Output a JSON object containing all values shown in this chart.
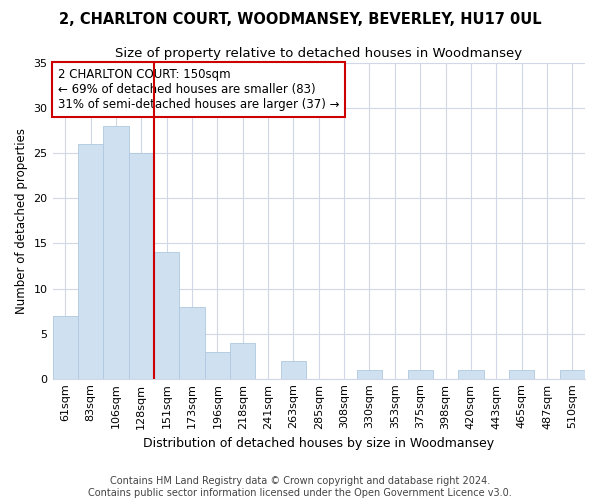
{
  "title": "2, CHARLTON COURT, WOODMANSEY, BEVERLEY, HU17 0UL",
  "subtitle": "Size of property relative to detached houses in Woodmansey",
  "xlabel": "Distribution of detached houses by size in Woodmansey",
  "ylabel": "Number of detached properties",
  "categories": [
    "61sqm",
    "83sqm",
    "106sqm",
    "128sqm",
    "151sqm",
    "173sqm",
    "196sqm",
    "218sqm",
    "241sqm",
    "263sqm",
    "285sqm",
    "308sqm",
    "330sqm",
    "353sqm",
    "375sqm",
    "398sqm",
    "420sqm",
    "443sqm",
    "465sqm",
    "487sqm",
    "510sqm"
  ],
  "values": [
    7,
    26,
    28,
    25,
    14,
    8,
    3,
    4,
    0,
    2,
    0,
    0,
    1,
    0,
    1,
    0,
    1,
    0,
    1,
    0,
    1
  ],
  "bar_color": "#cfe0f0",
  "bar_edgecolor": "#aec8e0",
  "vline_color": "#cc0000",
  "vline_x_index": 4,
  "annotation_line1": "2 CHARLTON COURT: 150sqm",
  "annotation_line2": "← 69% of detached houses are smaller (83)",
  "annotation_line3": "31% of semi-detached houses are larger (37) →",
  "annotation_box_edgecolor": "#cc0000",
  "ylim": [
    0,
    35
  ],
  "yticks": [
    0,
    5,
    10,
    15,
    20,
    25,
    30,
    35
  ],
  "footer": "Contains HM Land Registry data © Crown copyright and database right 2024.\nContains public sector information licensed under the Open Government Licence v3.0.",
  "title_fontsize": 10.5,
  "subtitle_fontsize": 9.5,
  "xlabel_fontsize": 9,
  "ylabel_fontsize": 8.5,
  "tick_fontsize": 8,
  "annotation_fontsize": 8.5,
  "footer_fontsize": 7,
  "bg_color": "#ffffff",
  "plot_bg_color": "#ffffff",
  "grid_color": "#d0d8e8"
}
